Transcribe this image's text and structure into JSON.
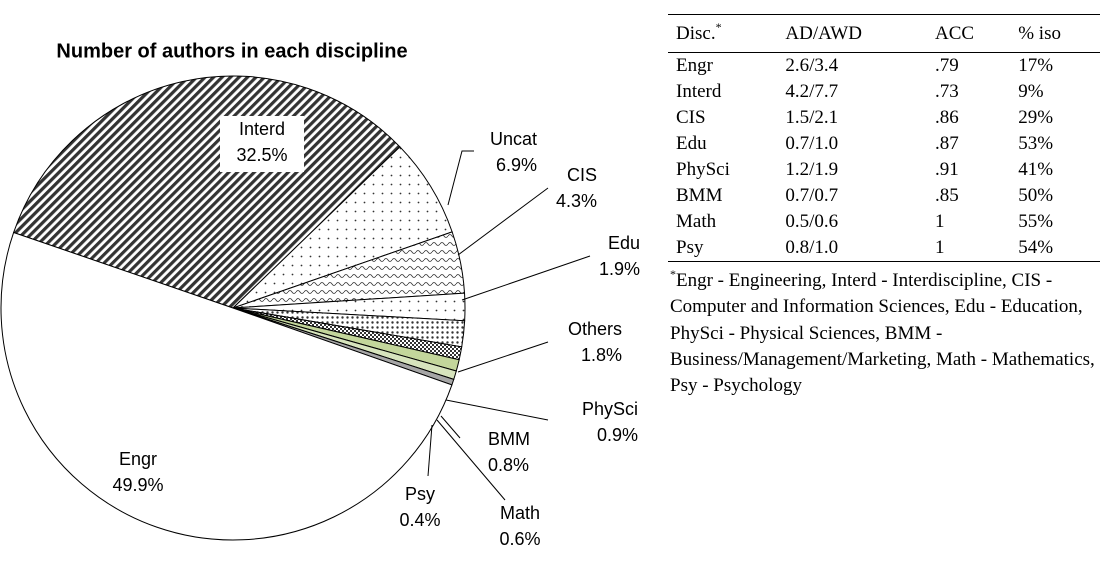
{
  "chart_data": {
    "type": "pie",
    "title": "Number of authors in each discipline",
    "categories": [
      "Interd",
      "Uncat",
      "CIS",
      "Edu",
      "Others",
      "PhySci",
      "BMM",
      "Math",
      "Psy",
      "Engr"
    ],
    "values": [
      32.5,
      6.9,
      4.3,
      1.9,
      1.8,
      0.9,
      0.8,
      0.6,
      0.4,
      49.9
    ],
    "value_labels": [
      "32.5%",
      "6.9%",
      "4.3%",
      "1.9%",
      "1.8%",
      "0.9%",
      "0.8%",
      "0.6%",
      "0.4%",
      "49.9%"
    ],
    "colors": [
      "#333333",
      "#333333",
      "#333333",
      "#333333",
      "#333333",
      "#333333",
      "#c3d69b",
      "#d7e4bd",
      "#a6a6a6",
      "#ffffff"
    ],
    "patterns": [
      "hatch",
      "dots",
      "wave",
      "dots",
      "dots",
      "checker",
      "solid",
      "solid",
      "solid",
      "solid"
    ]
  },
  "table": {
    "header": [
      "Disc.",
      "AD/AWD",
      "ACC",
      "% iso"
    ],
    "note_mark": "*",
    "rows": [
      [
        "Engr",
        "2.6/3.4",
        ".79",
        "17%"
      ],
      [
        "Interd",
        "4.2/7.7",
        ".73",
        "9%"
      ],
      [
        "CIS",
        "1.5/2.1",
        ".86",
        "29%"
      ],
      [
        "Edu",
        "0.7/1.0",
        ".87",
        "53%"
      ],
      [
        "PhySci",
        "1.2/1.9",
        ".91",
        "41%"
      ],
      [
        "BMM",
        "0.7/0.7",
        ".85",
        "50%"
      ],
      [
        "Math",
        "0.5/0.6",
        "1",
        "55%"
      ],
      [
        "Psy",
        "0.8/1.0",
        "1",
        "54%"
      ]
    ],
    "footnote": "Engr - Engineering, Interd - Interdiscipline, CIS - Computer and Information Sciences, Edu - Education, PhySci - Physical Sciences, BMM - Business/Management/Marketing, Math - Mathematics, Psy - Psychology"
  }
}
